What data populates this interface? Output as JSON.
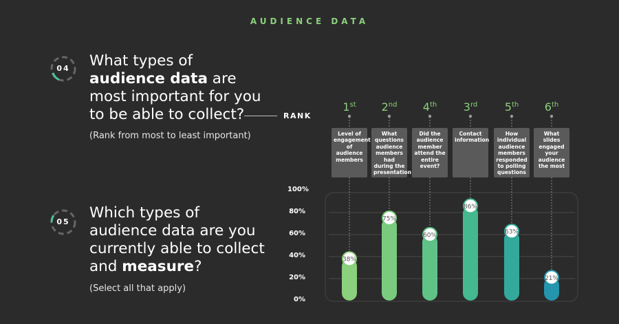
{
  "header": {
    "title": "AUDIENCE DATA"
  },
  "questions": [
    {
      "number": "04",
      "line1": "What types of",
      "line2_bold": "audience data",
      "line2_rest": " are",
      "line3": "most important for you",
      "line4": "to be able to collect?",
      "subtitle": "(Rank from most to least important)"
    },
    {
      "number": "05",
      "line1": "Which types of",
      "line2": "audience data are you",
      "line3": "currently able to collect",
      "line4_pre": "and ",
      "line4_bold": "measure",
      "line4_post": "?",
      "subtitle": "(Select all that apply)"
    }
  ],
  "rank_label": "RANK",
  "chart_data": {
    "type": "bar",
    "categories": [
      "Level of engagement of audience members",
      "What questions audience members had during the presentation",
      "Did the audience member attend the entire event?",
      "Contact information",
      "How individual audience members responded to polling questions",
      "What slides engaged your audience the most"
    ],
    "ranks": [
      {
        "num": "1",
        "suffix": "st"
      },
      {
        "num": "2",
        "suffix": "nd"
      },
      {
        "num": "4",
        "suffix": "th"
      },
      {
        "num": "3",
        "suffix": "rd"
      },
      {
        "num": "5",
        "suffix": "th"
      },
      {
        "num": "6",
        "suffix": "th"
      }
    ],
    "values": [
      38,
      75,
      60,
      86,
      63,
      21
    ],
    "value_labels": [
      "38%",
      "75%",
      "60%",
      "86%",
      "63%",
      "21%"
    ],
    "ylim": [
      0,
      100
    ],
    "yticks": [
      "0%",
      "20%",
      "40%",
      "60%",
      "80%",
      "100%"
    ],
    "grid": true,
    "bar_colors": [
      "#8bd07c",
      "#7acb7e",
      "#5fc287",
      "#44b88f",
      "#32a99a",
      "#2595ae"
    ]
  }
}
